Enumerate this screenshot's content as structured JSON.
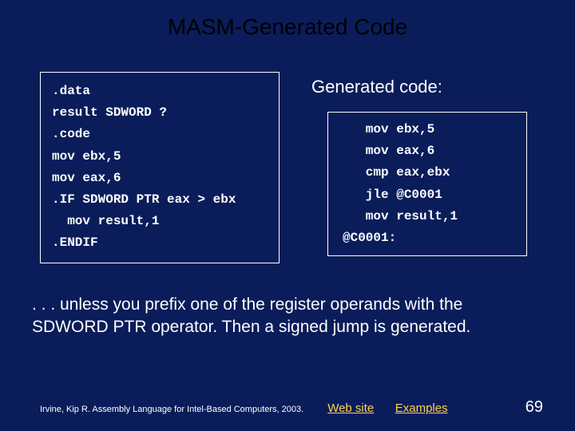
{
  "title": "MASM-Generated Code",
  "source": {
    "lines": [
      ".data",
      "result SDWORD ?",
      ".code",
      "mov ebx,5",
      "mov eax,6",
      ".IF SDWORD PTR eax > ebx",
      "  mov result,1",
      ".ENDIF"
    ]
  },
  "generated": {
    "heading": "Generated code:",
    "lines": [
      "   mov ebx,5",
      "   mov eax,6",
      "   cmp eax,ebx",
      "   jle @C0001",
      "   mov result,1",
      "@C0001:"
    ]
  },
  "explanation": ". . . unless you prefix one of the register operands with the SDWORD PTR operator. Then a signed jump is generated.",
  "footer": {
    "credit": "Irvine, Kip R. Assembly Language for Intel-Based Computers, 2003.",
    "link1": "Web site",
    "link2": "Examples",
    "page": "69"
  },
  "colors": {
    "background": "#0a1d5a",
    "title": "#000000",
    "text": "#ffffff",
    "link": "#ffd34f",
    "border": "#ffffff"
  }
}
